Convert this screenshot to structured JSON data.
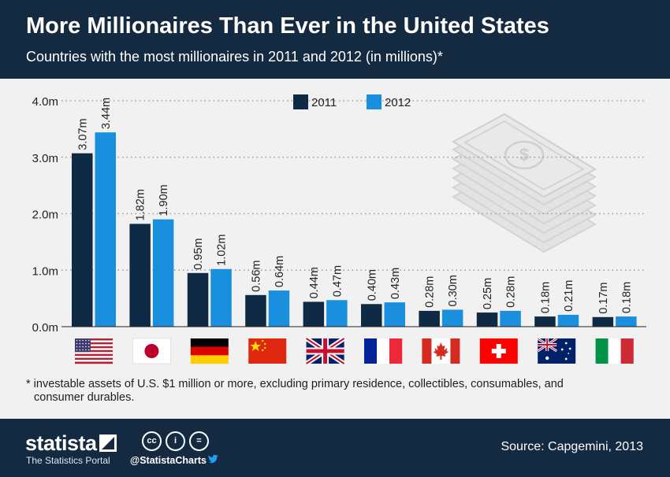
{
  "header": {
    "title": "More Millionaires Than Ever in the United States",
    "subtitle": "Countries with the most millionaires in 2011 and 2012 (in millions)*"
  },
  "chart_data": {
    "type": "bar",
    "categories": [
      "United States",
      "Japan",
      "Germany",
      "China",
      "United Kingdom",
      "France",
      "Canada",
      "Switzerland",
      "Australia",
      "Italy"
    ],
    "series": [
      {
        "name": "2011",
        "color": "#0e2a45",
        "values": [
          3.07,
          1.82,
          0.95,
          0.56,
          0.44,
          0.4,
          0.28,
          0.25,
          0.18,
          0.17
        ],
        "labels": [
          "3.07m",
          "1.82m",
          "0.95m",
          "0.56m",
          "0.44m",
          "0.40m",
          "0.28m",
          "0.25m",
          "0.18m",
          "0.17m"
        ]
      },
      {
        "name": "2012",
        "color": "#1a8fde",
        "values": [
          3.44,
          1.9,
          1.02,
          0.64,
          0.47,
          0.43,
          0.3,
          0.28,
          0.21,
          0.18
        ],
        "labels": [
          "3.44m",
          "1.90m",
          "1.02m",
          "0.64m",
          "0.47m",
          "0.43m",
          "0.30m",
          "0.28m",
          "0.21m",
          "0.18m"
        ]
      }
    ],
    "y_ticks": [
      "0.0m",
      "1.0m",
      "2.0m",
      "3.0m",
      "4.0m"
    ],
    "ylim": [
      0,
      4
    ],
    "grid": true,
    "legend_position": "top-center",
    "flags": [
      "us-flag-icon",
      "japan-flag-icon",
      "germany-flag-icon",
      "china-flag-icon",
      "uk-flag-icon",
      "france-flag-icon",
      "canada-flag-icon",
      "switzerland-flag-icon",
      "australia-flag-icon",
      "italy-flag-icon"
    ],
    "decoration": "money-stack-icon"
  },
  "footnote": {
    "line1": "* investable assets of U.S. $1 million or more, excluding primary residence, collectibles, consumables, and",
    "line2": "consumer durables."
  },
  "footer": {
    "brand": "statista",
    "tagline": "The Statistics Portal",
    "handle": "@StatistaCharts",
    "source": "Source: Capgemini, 2013",
    "license_icons": [
      "cc",
      "i",
      "="
    ]
  },
  "colors": {
    "header_bg": "#142a40",
    "footer_bg": "#142a40",
    "background": "#f1f1f1"
  }
}
